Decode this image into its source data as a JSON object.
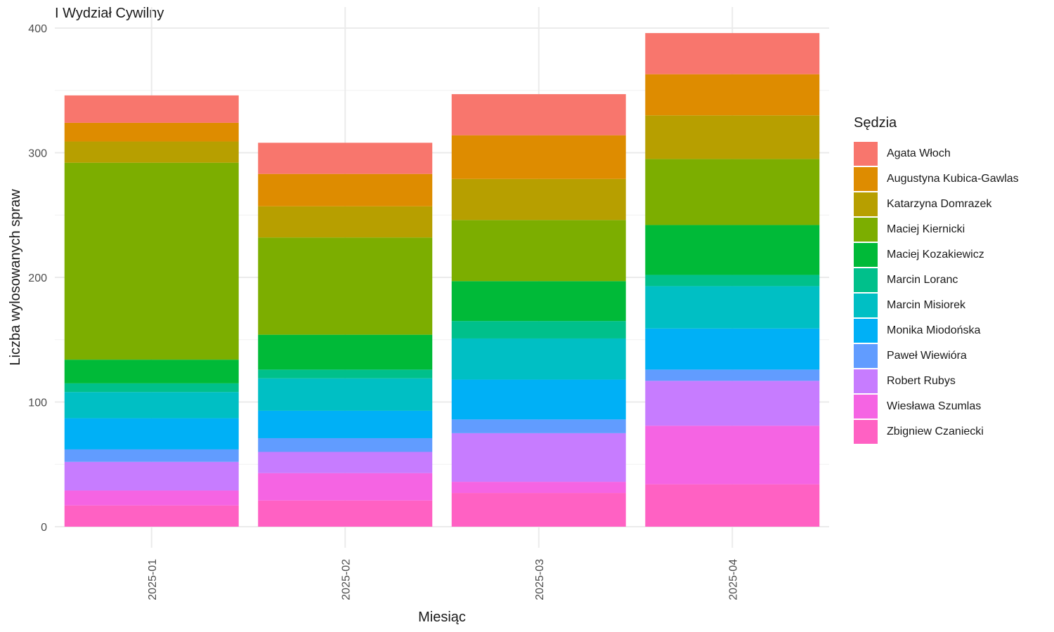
{
  "chart_data": {
    "type": "bar",
    "stacked": true,
    "title": "I Wydział Cywilny",
    "xlabel": "Miesiąc",
    "ylabel": "Liczba wylosowanych spraw",
    "ylim": [
      0,
      415
    ],
    "yticks": [
      0,
      100,
      200,
      300,
      400
    ],
    "grid": true,
    "legend_position": "right",
    "legend_title": "Sędzia",
    "categories": [
      "2025-01",
      "2025-02",
      "2025-03",
      "2025-04"
    ],
    "series": [
      {
        "name": "Zbigniew Czaniecki",
        "color": "#FF61C3",
        "values": [
          17,
          21,
          27,
          34
        ]
      },
      {
        "name": "Wiesława Szumlas",
        "color": "#F564E3",
        "values": [
          12,
          22,
          9,
          47
        ]
      },
      {
        "name": "Robert Rubys",
        "color": "#C77CFF",
        "values": [
          23,
          17,
          39,
          36
        ]
      },
      {
        "name": "Paweł Wiewióra",
        "color": "#619CFF",
        "values": [
          10,
          11,
          11,
          9
        ]
      },
      {
        "name": "Monika Miodońska",
        "color": "#00B0F6",
        "values": [
          25,
          22,
          32,
          33
        ]
      },
      {
        "name": "Marcin Misiorek",
        "color": "#00BFC4",
        "values": [
          21,
          26,
          33,
          34
        ]
      },
      {
        "name": "Marcin Loranc",
        "color": "#00C08B",
        "values": [
          7,
          7,
          14,
          9
        ]
      },
      {
        "name": "Maciej Kozakiewicz",
        "color": "#00BA38",
        "values": [
          19,
          28,
          32,
          40
        ]
      },
      {
        "name": "Maciej Kiernicki",
        "color": "#7CAE00",
        "values": [
          158,
          78,
          49,
          53
        ]
      },
      {
        "name": "Katarzyna Domrazek",
        "color": "#B79F00",
        "values": [
          17,
          25,
          33,
          35
        ]
      },
      {
        "name": "Augustyna Kubica-Gawlas",
        "color": "#DE8C00",
        "values": [
          15,
          26,
          35,
          33
        ]
      },
      {
        "name": "Agata Włoch",
        "color": "#F8766D",
        "values": [
          22,
          25,
          33,
          33
        ]
      }
    ]
  }
}
